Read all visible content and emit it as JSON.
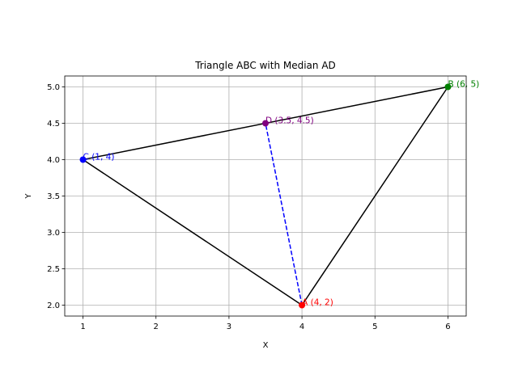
{
  "chart_data": {
    "type": "scatter",
    "title": "Triangle ABC with Median AD",
    "xlabel": "X",
    "ylabel": "Y",
    "xlim": [
      0.75,
      6.25
    ],
    "ylim": [
      1.85,
      5.15
    ],
    "xticks": [
      1,
      2,
      3,
      4,
      5,
      6
    ],
    "yticks": [
      2.0,
      2.5,
      3.0,
      3.5,
      4.0,
      4.5,
      5.0
    ],
    "xtick_labels": [
      "1",
      "2",
      "3",
      "4",
      "5",
      "6"
    ],
    "ytick_labels": [
      "2.0",
      "2.5",
      "3.0",
      "3.5",
      "4.0",
      "4.5",
      "5.0"
    ],
    "grid": true,
    "points": [
      {
        "id": "A",
        "x": 4,
        "y": 2,
        "label": "A (4, 2)",
        "color": "#ff0000"
      },
      {
        "id": "B",
        "x": 6,
        "y": 5,
        "label": "B (6, 5)",
        "color": "#008000"
      },
      {
        "id": "C",
        "x": 1,
        "y": 4,
        "label": "C (1, 4)",
        "color": "#0000ff"
      },
      {
        "id": "D",
        "x": 3.5,
        "y": 4.5,
        "label": "D (3.5, 4.5)",
        "color": "#800080"
      }
    ],
    "triangle": {
      "vertices": [
        "A",
        "B",
        "C"
      ],
      "color": "#000000",
      "style": "solid"
    },
    "median": {
      "from": "A",
      "to": "D",
      "color": "#0000ff",
      "style": "dashed"
    }
  }
}
